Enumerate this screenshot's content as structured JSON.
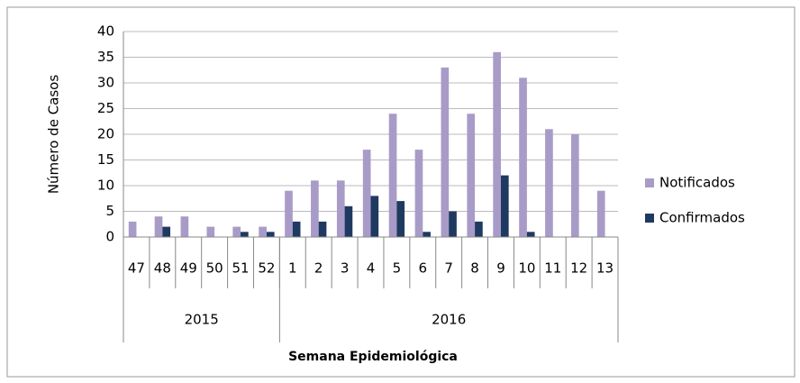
{
  "chart_data": {
    "type": "bar",
    "y_label": "Número de Casos",
    "x_label": "Semana Epidemiológica",
    "category_groups": [
      {
        "label": "2015",
        "categories": [
          "47",
          "48",
          "49",
          "50",
          "51",
          "52"
        ]
      },
      {
        "label": "2016",
        "categories": [
          "1",
          "2",
          "3",
          "4",
          "5",
          "6",
          "7",
          "8",
          "9",
          "10",
          "11",
          "12",
          "13"
        ]
      }
    ],
    "series": [
      {
        "name": "Notificados",
        "color": "#a99bc8",
        "values": [
          3,
          4,
          4,
          2,
          2,
          2,
          9,
          11,
          11,
          17,
          24,
          17,
          33,
          24,
          36,
          31,
          21,
          20,
          9
        ]
      },
      {
        "name": "Confirmados",
        "color": "#1f3a60",
        "values": [
          0,
          2,
          0,
          0,
          1,
          1,
          3,
          3,
          6,
          8,
          7,
          1,
          5,
          3,
          12,
          1,
          0,
          0,
          0
        ]
      }
    ],
    "ylim": [
      0,
      40
    ],
    "yticks": [
      0,
      5,
      10,
      15,
      20,
      25,
      30,
      35,
      40
    ],
    "grid": true,
    "legend": "right"
  }
}
